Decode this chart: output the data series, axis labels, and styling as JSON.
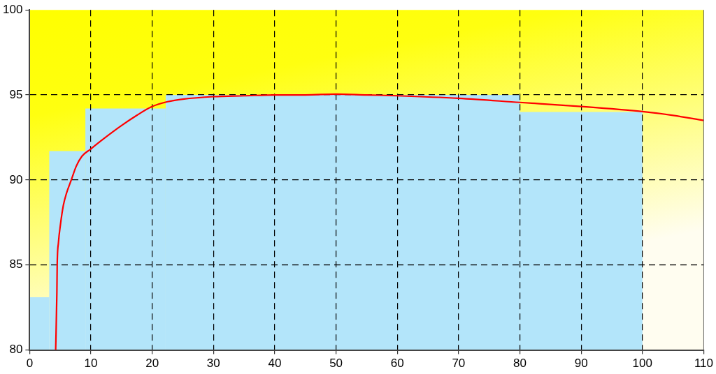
{
  "chart_data": {
    "type": "histogram",
    "xlim": [
      0,
      110
    ],
    "xticks": [
      0,
      10,
      20,
      30,
      40,
      50,
      60,
      70,
      80,
      90,
      100,
      110
    ],
    "ylim": [
      80,
      100
    ],
    "yticks": [
      80,
      85,
      90,
      95,
      100
    ],
    "grid": true,
    "legend": false,
    "marker": "none",
    "line_style": "solid",
    "series": [
      {
        "color": "#b3e5fa",
        "bins": [
          0,
          3.2,
          9.1,
          22.2,
          80,
          100
        ],
        "values": [
          83.1,
          91.7,
          94.2,
          95.0,
          94.0
        ]
      },
      {
        "type": "line",
        "color": "#ff0000",
        "x": [
          4.25,
          4.45,
          4.5,
          4.7,
          5.04,
          5.5,
          6.0,
          6.8,
          7.6,
          8.55,
          9.9,
          12,
          15,
          17.5,
          19.9,
          22.5,
          25,
          30,
          35,
          40,
          45,
          50,
          55,
          60,
          70,
          80,
          90,
          100,
          105,
          110
        ],
        "values": [
          80.0,
          83.4,
          85.0,
          86.3,
          87.4,
          88.5,
          89.2,
          90.0,
          90.8,
          91.4,
          91.8,
          92.4,
          93.2,
          93.8,
          94.3,
          94.6,
          94.75,
          94.9,
          94.95,
          95.0,
          95.0,
          95.05,
          95.0,
          94.95,
          94.8,
          94.56,
          94.32,
          94.02,
          93.8,
          93.5
        ]
      }
    ]
  }
}
